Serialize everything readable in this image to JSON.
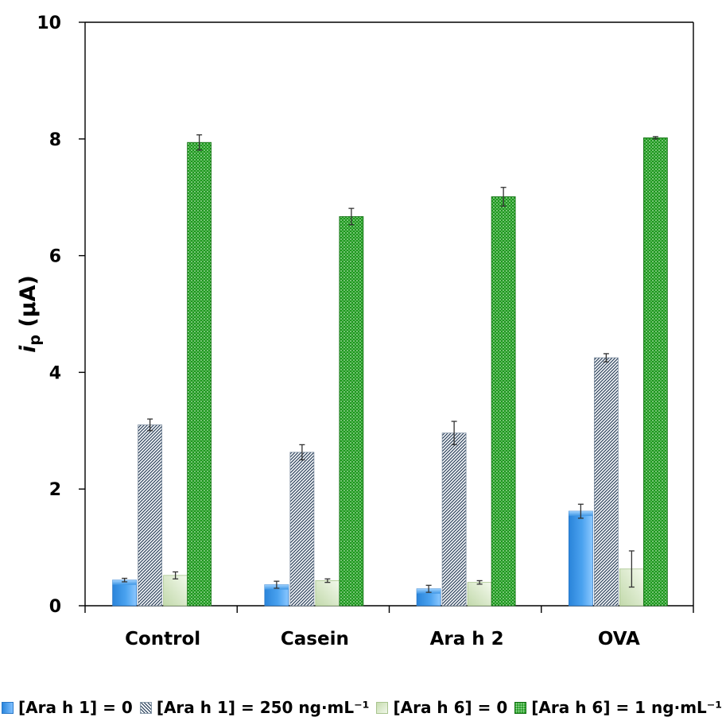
{
  "chart_data": {
    "type": "bar",
    "ylabel_main": "i",
    "ylabel_sub": "p",
    "ylabel_unit": " (µA)",
    "ylim": [
      0,
      10
    ],
    "yticks": [
      "0",
      "2",
      "4",
      "6",
      "8",
      "10"
    ],
    "ytick_values": [
      0,
      2,
      4,
      6,
      8,
      10
    ],
    "categories": [
      "Control",
      "Casein",
      "Ara h 2",
      "OVA"
    ],
    "series": [
      {
        "name": "[Ara h 1] = 0",
        "style": "blue",
        "values": [
          0.44,
          0.36,
          0.29,
          1.62
        ],
        "errors": [
          0.03,
          0.06,
          0.06,
          0.12
        ]
      },
      {
        "name": "[Ara h 1] = 250 ng·mL⁻¹",
        "style": "hatch",
        "values": [
          3.1,
          2.63,
          2.96,
          4.25
        ],
        "errors": [
          0.1,
          0.13,
          0.2,
          0.07
        ]
      },
      {
        "name": "[Ara h 6] = 0",
        "style": "lgreen",
        "values": [
          0.52,
          0.43,
          0.4,
          0.63
        ],
        "errors": [
          0.06,
          0.03,
          0.03,
          0.31
        ]
      },
      {
        "name": "[Ara h 6] = 1 ng·mL⁻¹",
        "style": "dgreen",
        "values": [
          7.94,
          6.67,
          7.01,
          8.02
        ],
        "errors": [
          0.13,
          0.14,
          0.16,
          0.02
        ]
      }
    ],
    "grid": false,
    "legend_position": "bottom"
  }
}
